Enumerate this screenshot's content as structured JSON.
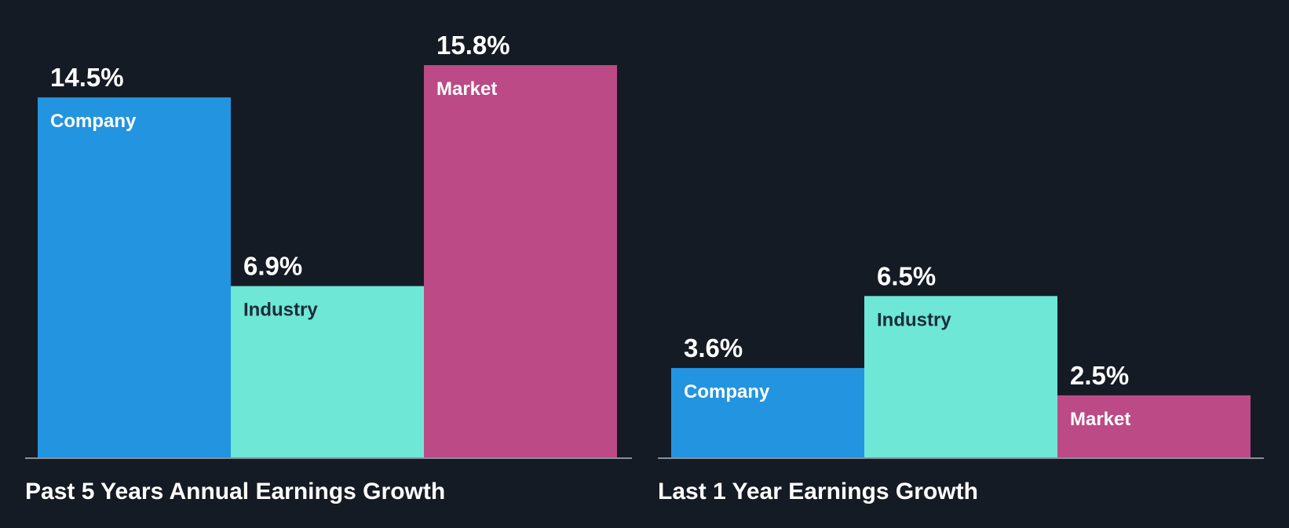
{
  "colors": {
    "background": "#151b24",
    "company": "#2394df",
    "industry": "#6ee7d6",
    "market": "#bb4a86",
    "value_text": "#ffffff",
    "baseline": "#8a8f98"
  },
  "chart_data": [
    {
      "type": "bar",
      "title": "Past 5 Years Annual Earnings Growth",
      "categories": [
        "Company",
        "Industry",
        "Market"
      ],
      "values": [
        14.5,
        6.9,
        15.8
      ],
      "value_labels": [
        "14.5%",
        "6.9%",
        "15.8%"
      ],
      "label_colors": [
        "#ffffff",
        "#1c2b3a",
        "#ffffff"
      ],
      "ylim": [
        0,
        15.8
      ]
    },
    {
      "type": "bar",
      "title": "Last 1 Year Earnings Growth",
      "categories": [
        "Company",
        "Industry",
        "Market"
      ],
      "values": [
        3.6,
        6.5,
        2.5
      ],
      "value_labels": [
        "3.6%",
        "6.5%",
        "2.5%"
      ],
      "label_colors": [
        "#ffffff",
        "#1c2b3a",
        "#ffffff"
      ],
      "ylim": [
        0,
        15.8
      ]
    }
  ]
}
